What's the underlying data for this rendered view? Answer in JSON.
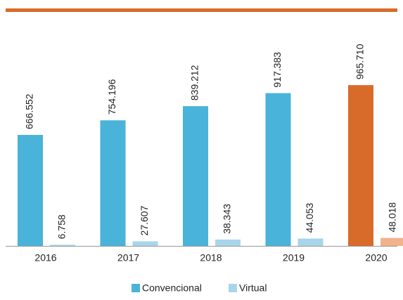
{
  "chart_data": {
    "type": "bar",
    "categories": [
      "2016",
      "2017",
      "2018",
      "2019",
      "2020"
    ],
    "series": [
      {
        "name": "Convencional",
        "color": "#4ab3d9",
        "colors": [
          "#4ab3d9",
          "#4ab3d9",
          "#4ab3d9",
          "#4ab3d9",
          "#d96b2a"
        ],
        "values": [
          666552,
          754196,
          839212,
          917383,
          965710
        ],
        "value_labels": [
          "666.552",
          "754.196",
          "839.212",
          "917.383",
          "965.710"
        ]
      },
      {
        "name": "Virtual",
        "color": "#a8d5ea",
        "colors": [
          "#a8d5ea",
          "#a8d5ea",
          "#a8d5ea",
          "#a8d5ea",
          "#f2b28c"
        ],
        "values": [
          6758,
          27607,
          38343,
          44053,
          48018
        ],
        "value_labels": [
          "6.758",
          "27.607",
          "38.343",
          "44.053",
          "48.018"
        ]
      }
    ],
    "ylim": [
      0,
      1000000
    ]
  }
}
